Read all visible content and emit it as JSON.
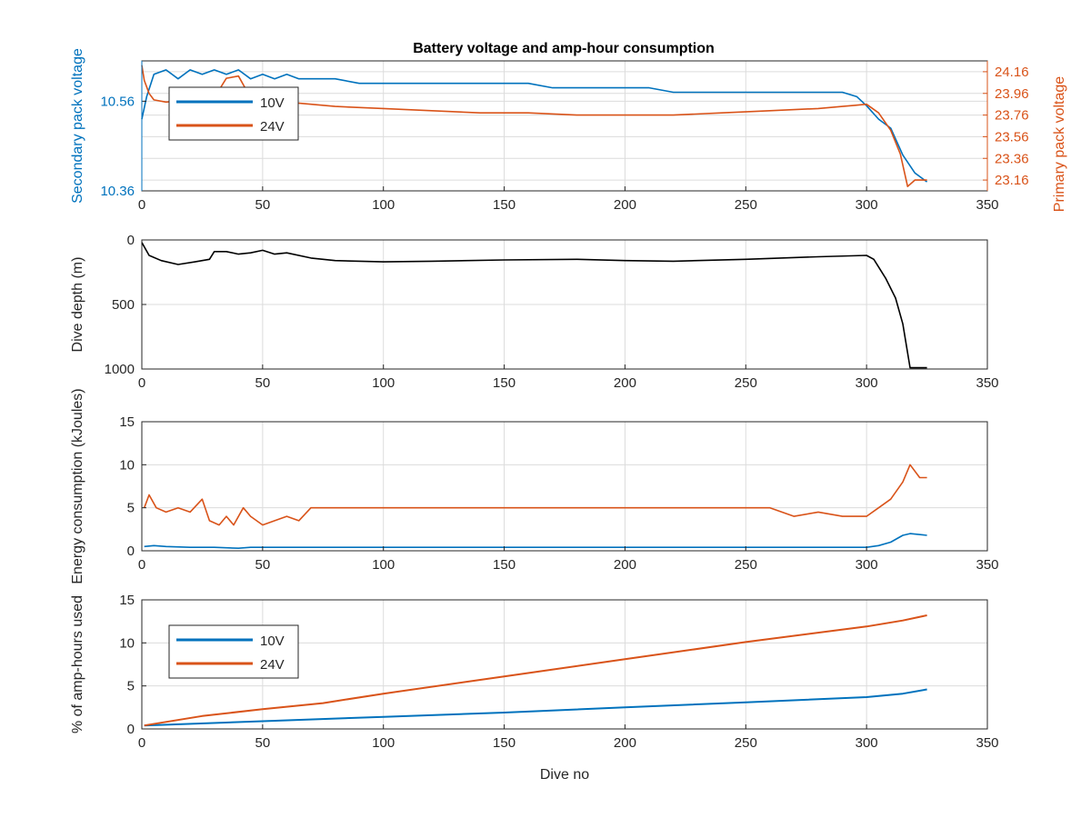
{
  "title": "Battery voltage and amp-hour consumption",
  "colors": {
    "s10": "#0072BD",
    "s24": "#D95319",
    "depth": "#000000",
    "axis": "#262626",
    "grid": "#dcdcdc"
  },
  "chart_data": [
    {
      "id": "voltage",
      "type": "line",
      "title": "Battery voltage and amp-hour consumption",
      "xlim": [
        0,
        350
      ],
      "xticks": [
        "0",
        "50",
        "100",
        "150",
        "200",
        "250",
        "300",
        "350"
      ],
      "ylabel": "Secondary pack voltage",
      "ylim": [
        10.36,
        10.65
      ],
      "yticks": [
        "10.36",
        "10.56"
      ],
      "y2label": "Primary pack voltage",
      "y2lim": [
        23.06,
        24.26
      ],
      "y2ticks": [
        "23.16",
        "23.36",
        "23.56",
        "23.76",
        "23.96",
        "24.16"
      ],
      "legend": {
        "placement": "top-left",
        "entries": [
          "10V",
          "24V"
        ]
      },
      "series": [
        {
          "name": "10V",
          "axis": "left",
          "x": [
            0,
            2,
            5,
            10,
            15,
            20,
            25,
            30,
            35,
            40,
            45,
            50,
            55,
            60,
            65,
            70,
            80,
            90,
            100,
            110,
            120,
            130,
            140,
            150,
            160,
            170,
            180,
            190,
            200,
            210,
            220,
            230,
            240,
            250,
            260,
            270,
            280,
            290,
            296,
            300,
            305,
            310,
            315,
            320,
            325
          ],
          "y": [
            10.52,
            10.57,
            10.62,
            10.63,
            10.61,
            10.63,
            10.62,
            10.63,
            10.62,
            10.63,
            10.61,
            10.62,
            10.61,
            10.62,
            10.61,
            10.61,
            10.61,
            10.6,
            10.6,
            10.6,
            10.6,
            10.6,
            10.6,
            10.6,
            10.6,
            10.59,
            10.59,
            10.59,
            10.59,
            10.59,
            10.58,
            10.58,
            10.58,
            10.58,
            10.58,
            10.58,
            10.58,
            10.58,
            10.57,
            10.55,
            10.52,
            10.5,
            10.44,
            10.4,
            10.38
          ]
        },
        {
          "name": "24V",
          "axis": "right",
          "x": [
            0,
            1,
            3,
            5,
            10,
            20,
            30,
            35,
            40,
            45,
            50,
            60,
            70,
            80,
            100,
            120,
            140,
            160,
            180,
            200,
            220,
            240,
            260,
            280,
            290,
            295,
            300,
            305,
            310,
            314,
            317,
            320,
            325
          ],
          "y": [
            24.22,
            24.08,
            23.96,
            23.9,
            23.88,
            23.9,
            23.92,
            24.1,
            24.12,
            23.92,
            23.88,
            23.88,
            23.86,
            23.84,
            23.82,
            23.8,
            23.78,
            23.78,
            23.76,
            23.76,
            23.76,
            23.78,
            23.8,
            23.82,
            23.84,
            23.85,
            23.86,
            23.78,
            23.62,
            23.4,
            23.1,
            23.16,
            23.16
          ]
        }
      ]
    },
    {
      "id": "depth",
      "type": "line",
      "xlim": [
        0,
        350
      ],
      "xticks": [
        "0",
        "50",
        "100",
        "150",
        "200",
        "250",
        "300",
        "350"
      ],
      "ylabel": "Dive depth (m)",
      "ylim": [
        0,
        1000
      ],
      "reversed": true,
      "yticks": [
        "0",
        "500",
        "1000"
      ],
      "series": [
        {
          "x": [
            0,
            3,
            8,
            15,
            22,
            28,
            30,
            35,
            40,
            45,
            50,
            55,
            60,
            70,
            80,
            100,
            120,
            150,
            180,
            200,
            220,
            250,
            280,
            300,
            303,
            308,
            312,
            315,
            318,
            325
          ],
          "y": [
            20,
            120,
            160,
            190,
            170,
            150,
            90,
            90,
            110,
            100,
            80,
            110,
            100,
            140,
            160,
            170,
            165,
            155,
            150,
            160,
            165,
            150,
            130,
            120,
            150,
            300,
            450,
            650,
            990,
            990
          ]
        }
      ]
    },
    {
      "id": "energy",
      "type": "line",
      "xlim": [
        0,
        350
      ],
      "xticks": [
        "0",
        "50",
        "100",
        "150",
        "200",
        "250",
        "300",
        "350"
      ],
      "ylabel": "Energy consumption (kJoules)",
      "ylim": [
        0,
        15
      ],
      "yticks": [
        "0",
        "5",
        "10",
        "15"
      ],
      "series": [
        {
          "name": "10V",
          "x": [
            1,
            5,
            10,
            20,
            30,
            40,
            45,
            55,
            100,
            150,
            200,
            206,
            250,
            290,
            300,
            305,
            310,
            315,
            318,
            325
          ],
          "y": [
            0.5,
            0.6,
            0.5,
            0.4,
            0.4,
            0.3,
            0.4,
            0.4,
            0.4,
            0.4,
            0.4,
            0.4,
            0.4,
            0.4,
            0.4,
            0.6,
            1.0,
            1.8,
            2.0,
            1.8
          ]
        },
        {
          "name": "24V",
          "x": [
            1,
            3,
            6,
            10,
            15,
            20,
            25,
            28,
            32,
            35,
            38,
            42,
            45,
            50,
            55,
            60,
            65,
            70,
            80,
            100,
            120,
            150,
            180,
            200,
            206,
            220,
            240,
            260,
            270,
            280,
            290,
            300,
            305,
            310,
            315,
            318,
            322,
            325
          ],
          "y": [
            5,
            6.5,
            5,
            4.5,
            5,
            4.5,
            6,
            3.5,
            3,
            4,
            3,
            5,
            4,
            3,
            3.5,
            4,
            3.5,
            5,
            5,
            5,
            5,
            5,
            5,
            5,
            5,
            5,
            5,
            5,
            4,
            4.5,
            4,
            4,
            5,
            6,
            8,
            10,
            8.5,
            8.5
          ]
        }
      ]
    },
    {
      "id": "amphours",
      "type": "line",
      "xlim": [
        0,
        350
      ],
      "xticks": [
        "0",
        "50",
        "100",
        "150",
        "200",
        "250",
        "300",
        "350"
      ],
      "xlabel": "Dive no",
      "ylabel": "% of amp-hours used",
      "ylim": [
        0,
        15
      ],
      "yticks": [
        "0",
        "5",
        "10",
        "15"
      ],
      "legend": {
        "placement": "center-left",
        "entries": [
          "10V",
          "24V"
        ]
      },
      "series": [
        {
          "name": "10V",
          "x": [
            1,
            50,
            100,
            150,
            200,
            250,
            300,
            315,
            325
          ],
          "y": [
            0.4,
            0.9,
            1.4,
            1.9,
            2.5,
            3.1,
            3.7,
            4.1,
            4.6
          ]
        },
        {
          "name": "24V",
          "x": [
            1,
            25,
            50,
            75,
            100,
            150,
            200,
            250,
            300,
            315,
            325
          ],
          "y": [
            0.4,
            1.5,
            2.3,
            3.0,
            4.1,
            6.1,
            8.1,
            10.1,
            11.9,
            12.6,
            13.2
          ]
        }
      ]
    }
  ]
}
